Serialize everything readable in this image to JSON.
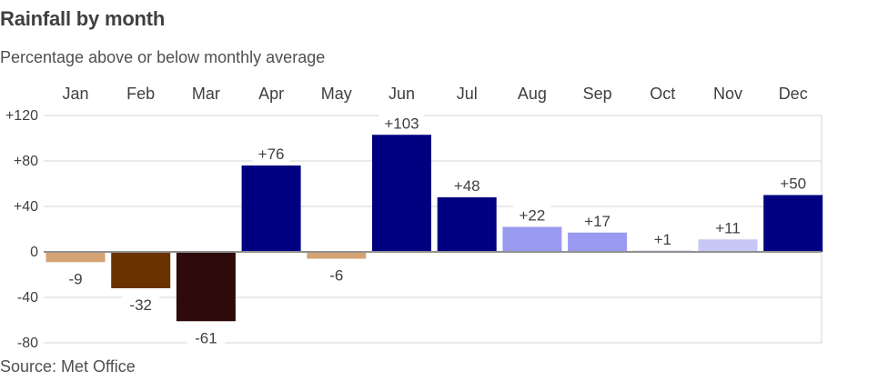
{
  "title": "Rainfall by month",
  "subtitle": "Percentage above or below monthly average",
  "source": "Source: Met Office",
  "chart_data": {
    "type": "bar",
    "title": "Rainfall by month",
    "subtitle": "Percentage above or below monthly average",
    "categories": [
      "Jan",
      "Feb",
      "Mar",
      "Apr",
      "May",
      "Jun",
      "Jul",
      "Aug",
      "Sep",
      "Oct",
      "Nov",
      "Dec"
    ],
    "values": [
      -9,
      -32,
      -61,
      76,
      -6,
      103,
      48,
      22,
      17,
      1,
      11,
      50
    ],
    "data_labels": [
      "-9",
      "-32",
      "-61",
      "+76",
      "-6",
      "+103",
      "+48",
      "+22",
      "+17",
      "+1",
      "+11",
      "+50"
    ],
    "colors": [
      "#d4a373",
      "#6b3300",
      "#2e0a0a",
      "#000080",
      "#d4a373",
      "#000080",
      "#000080",
      "#9a9af0",
      "#9a9af0",
      "#9a9af0",
      "#c8c8f5",
      "#000080"
    ],
    "ylim": [
      -80,
      120
    ],
    "yticks": [
      -80,
      -40,
      0,
      40,
      80,
      120
    ],
    "ytick_labels": [
      "-80",
      "-40",
      "0",
      "+40",
      "+80",
      "+120"
    ],
    "grid": true,
    "category_axis_position": "top"
  }
}
